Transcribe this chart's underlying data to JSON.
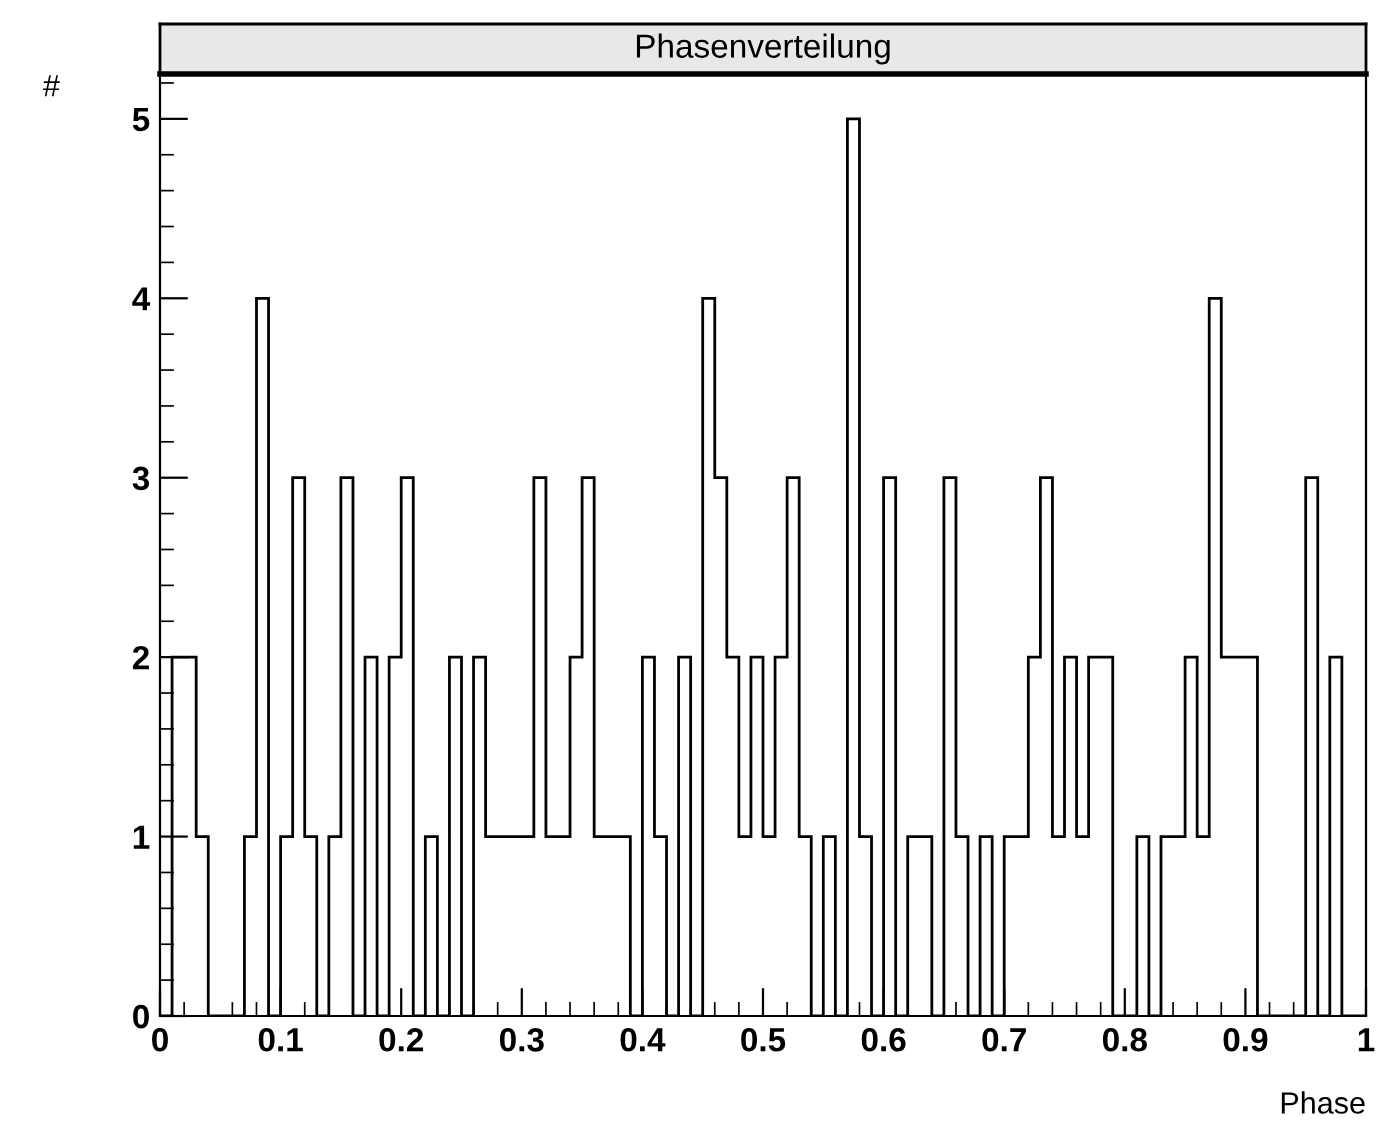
{
  "chart_data": {
    "type": "histogram",
    "title": "Phasenverteilung",
    "xlabel": "Phase",
    "ylabel": "#",
    "bins": [
      0,
      0.01,
      0.02,
      0.03,
      0.04,
      0.05,
      0.06,
      0.07,
      0.08,
      0.09,
      0.1,
      0.11,
      0.12,
      0.13,
      0.14,
      0.15,
      0.16,
      0.17,
      0.18,
      0.19,
      0.2,
      0.21,
      0.22,
      0.23,
      0.24,
      0.25,
      0.26,
      0.27,
      0.28,
      0.29,
      0.3,
      0.31,
      0.32,
      0.33,
      0.34,
      0.35,
      0.36,
      0.37,
      0.38,
      0.39,
      0.4,
      0.41,
      0.42,
      0.43,
      0.44,
      0.45,
      0.46,
      0.47,
      0.48,
      0.49,
      0.5,
      0.51,
      0.52,
      0.53,
      0.54,
      0.55,
      0.56,
      0.57,
      0.58,
      0.59,
      0.6,
      0.61,
      0.62,
      0.63,
      0.64,
      0.65,
      0.66,
      0.67,
      0.68,
      0.69,
      0.7,
      0.71,
      0.72,
      0.73,
      0.74,
      0.75,
      0.76,
      0.77,
      0.78,
      0.79,
      0.8,
      0.81,
      0.82,
      0.83,
      0.84,
      0.85,
      0.86,
      0.87,
      0.88,
      0.89,
      0.9,
      0.91,
      0.92,
      0.93,
      0.94,
      0.95,
      0.96,
      0.97,
      0.98,
      0.99,
      1
    ],
    "values": [
      0,
      2,
      2,
      1,
      0,
      0,
      0,
      1,
      4,
      0,
      1,
      3,
      1,
      0,
      1,
      3,
      0,
      2,
      0,
      2,
      3,
      0,
      1,
      0,
      2,
      0,
      2,
      1,
      1,
      1,
      1,
      3,
      1,
      1,
      2,
      3,
      1,
      1,
      1,
      0,
      2,
      1,
      0,
      2,
      0,
      4,
      3,
      2,
      1,
      2,
      1,
      2,
      3,
      1,
      0,
      1,
      0,
      5,
      1,
      0,
      3,
      0,
      1,
      1,
      0,
      3,
      1,
      0,
      1,
      0,
      1,
      1,
      2,
      3,
      1,
      2,
      1,
      2,
      2,
      0,
      0,
      1,
      0,
      1,
      1,
      2,
      1,
      4,
      2,
      2,
      2,
      0,
      0,
      0,
      0,
      3,
      0,
      2,
      0,
      0
    ],
    "color": "#000000",
    "xlim": [
      0,
      1
    ],
    "xticks": [
      0,
      0.1,
      0.2,
      0.3,
      0.4,
      0.5,
      0.6,
      0.7,
      0.8,
      0.9,
      1
    ],
    "ylim": [
      0,
      5.25
    ],
    "yticks": [
      0,
      1,
      2,
      3,
      4,
      5
    ],
    "grid": false
  }
}
